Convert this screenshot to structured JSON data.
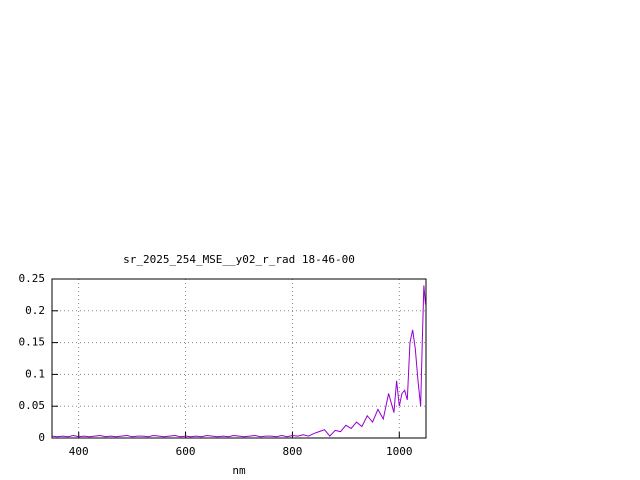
{
  "chart_data": {
    "type": "line",
    "title": "sr_2025_254_MSE__y02_r_rad 18-46-00",
    "x_label": "nm",
    "x": [
      350,
      360,
      370,
      380,
      390,
      400,
      410,
      420,
      430,
      440,
      450,
      460,
      470,
      480,
      490,
      500,
      510,
      520,
      530,
      540,
      550,
      560,
      570,
      580,
      590,
      600,
      610,
      620,
      630,
      640,
      650,
      660,
      670,
      680,
      690,
      700,
      710,
      720,
      730,
      740,
      750,
      760,
      770,
      780,
      790,
      800,
      810,
      820,
      830,
      840,
      850,
      860,
      870,
      880,
      890,
      900,
      910,
      920,
      930,
      940,
      950,
      960,
      970,
      980,
      990,
      995,
      1000,
      1005,
      1010,
      1015,
      1020,
      1025,
      1030,
      1035,
      1040,
      1043,
      1046,
      1049
    ],
    "series": [
      {
        "name": "sr_2025_254_MSE__y02_r_rad",
        "color": "#9400d3",
        "values": [
          0.003,
          0.002,
          0.003,
          0.002,
          0.004,
          0.002,
          0.003,
          0.002,
          0.003,
          0.004,
          0.002,
          0.003,
          0.002,
          0.003,
          0.004,
          0.002,
          0.003,
          0.003,
          0.002,
          0.004,
          0.003,
          0.002,
          0.003,
          0.004,
          0.002,
          0.003,
          0.002,
          0.003,
          0.002,
          0.004,
          0.003,
          0.002,
          0.003,
          0.002,
          0.004,
          0.003,
          0.002,
          0.003,
          0.004,
          0.002,
          0.003,
          0.003,
          0.002,
          0.004,
          0.002,
          0.004,
          0.003,
          0.005,
          0.003,
          0.007,
          0.01,
          0.013,
          0.003,
          0.012,
          0.01,
          0.02,
          0.015,
          0.025,
          0.018,
          0.035,
          0.025,
          0.045,
          0.03,
          0.07,
          0.04,
          0.09,
          0.05,
          0.07,
          0.075,
          0.06,
          0.15,
          0.17,
          0.14,
          0.09,
          0.05,
          0.15,
          0.24,
          0.21
        ]
      }
    ],
    "xlim": [
      350,
      1050
    ],
    "ylim": [
      0,
      0.25
    ],
    "xticks": [
      400,
      600,
      800,
      1000
    ],
    "yticks": [
      0,
      0.05,
      0.1,
      0.15,
      0.2,
      0.25
    ],
    "grid": true
  }
}
